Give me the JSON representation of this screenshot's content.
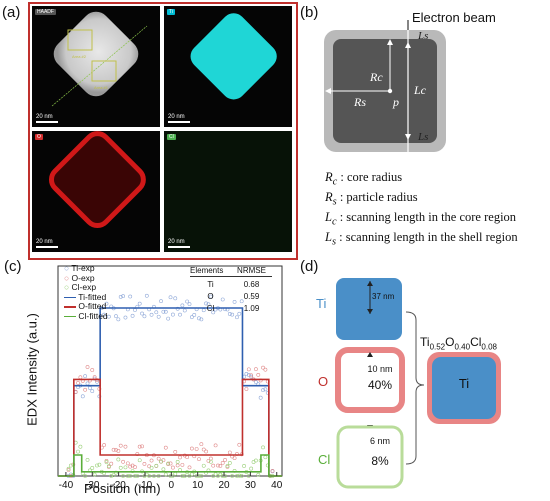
{
  "panel_labels": {
    "a": "(a)",
    "b": "(b)",
    "c": "(c)",
    "d": "(d)"
  },
  "panel_a": {
    "tiles": [
      {
        "tag": "HAADF",
        "scale": "20 nm",
        "tag_color": "#555555"
      },
      {
        "tag": "Ti",
        "scale": "20 nm",
        "tag_color": "#00bcd4"
      },
      {
        "tag": "O",
        "scale": "20 nm",
        "tag_color": "#d32f2f"
      },
      {
        "tag": "Cl",
        "scale": "20 nm",
        "tag_color": "#4caf50"
      }
    ],
    "areas": {
      "area2": "Area #2",
      "area1": "Area #1"
    }
  },
  "panel_b": {
    "beam": "Electron beam",
    "labels": {
      "Rc": "Rc",
      "Rs": "Rs",
      "p": "p",
      "Lc": "Lc",
      "Ls_top": "Ls",
      "Ls_bottom": "Ls"
    },
    "legend": [
      {
        "sym": "R",
        "sub": "c",
        "text": ": core radius"
      },
      {
        "sym": "R",
        "sub": "s",
        "text": ": particle radius"
      },
      {
        "sym": "L",
        "sub": "c",
        "text": ": scanning length in the core region"
      },
      {
        "sym": "L",
        "sub": "s",
        "text": ": scanning length in the shell region"
      }
    ]
  },
  "chart_data": {
    "type": "line",
    "xlabel": "Position (nm)",
    "ylabel": "EDX Intensity (a.u.)",
    "xlim": [
      -43,
      42
    ],
    "xticks": [
      -40,
      -30,
      -20,
      -10,
      0,
      10,
      20,
      30,
      40
    ],
    "ylim": [
      0,
      1
    ],
    "legend": [
      {
        "name": "Ti-exp",
        "marker": "circle",
        "color": "#8fa8d8"
      },
      {
        "name": "O-exp",
        "marker": "circle",
        "color": "#e08a8a"
      },
      {
        "name": "Cl-exp",
        "marker": "circle",
        "color": "#9bd07a"
      },
      {
        "name": "Ti-fitted",
        "marker": "line",
        "color": "#2f5fb0"
      },
      {
        "name": "O-fitted",
        "marker": "line",
        "color": "#c0302d"
      },
      {
        "name": "Cl-fitted",
        "marker": "line",
        "color": "#5aae3a"
      }
    ],
    "series": [
      {
        "name": "Ti-fitted",
        "color": "#2f5fb0",
        "x": [
          -43,
          -37,
          -37,
          -27,
          -27,
          27,
          27,
          37,
          37,
          42
        ],
        "y": [
          0.0,
          0.0,
          0.43,
          0.43,
          0.8,
          0.8,
          0.43,
          0.43,
          0.0,
          0.0
        ]
      },
      {
        "name": "O-fitted",
        "color": "#c0302d",
        "x": [
          -43,
          -37,
          -37,
          -27,
          -27,
          27,
          27,
          37,
          37,
          42
        ],
        "y": [
          0.0,
          0.0,
          0.46,
          0.46,
          0.1,
          0.1,
          0.46,
          0.46,
          0.0,
          0.0
        ]
      },
      {
        "name": "Cl-fitted",
        "color": "#5aae3a",
        "x": [
          -43,
          -37,
          -37,
          -34,
          -34,
          34,
          34,
          37,
          37,
          42
        ],
        "y": [
          0.0,
          0.0,
          0.1,
          0.1,
          0.02,
          0.02,
          0.1,
          0.1,
          0.0,
          0.0
        ]
      }
    ],
    "table": {
      "headers": [
        "Elements",
        "NRMSE"
      ],
      "rows": [
        [
          "Ti",
          "0.68"
        ],
        [
          "O",
          "0.59"
        ],
        [
          "Cl",
          "1.09"
        ]
      ]
    }
  },
  "panel_d": {
    "ti_label": "Ti",
    "o_label": "O",
    "cl_label": "Cl",
    "ti_dim": "37 nm",
    "o_dim": "10 nm",
    "o_pct": "40%",
    "cl_dim": "6 nm",
    "cl_pct": "8%",
    "formula": {
      "base1": "Ti",
      "sub1": "0.52",
      "base2": "O",
      "sub2": "0.40",
      "base3": "Cl",
      "sub3": "0.08"
    },
    "result_label": "Ti",
    "colors": {
      "ti": "#4a8fc8",
      "o": "#e88585",
      "cl": "#b9dc9a",
      "o_text": "#c0302d",
      "cl_text": "#5aae3a",
      "ti_text": "#4a8fc8"
    }
  }
}
